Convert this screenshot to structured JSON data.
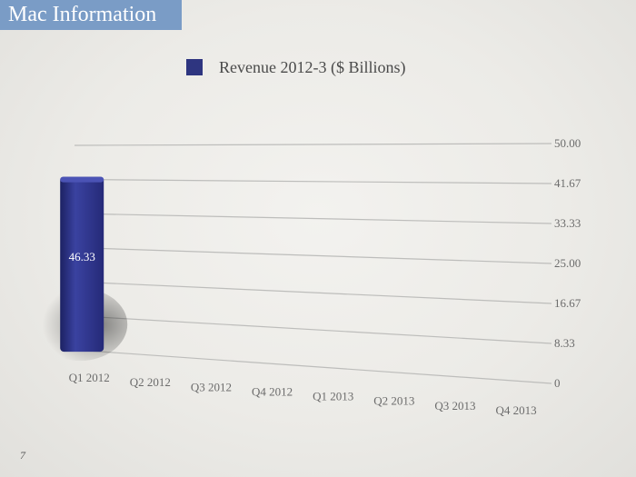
{
  "slide": {
    "title": "Mac Information",
    "title_bg": "#7a9cc6",
    "page_number": "7"
  },
  "chart_data": {
    "type": "bar",
    "categories": [
      "Q1 2012",
      "Q2 2012",
      "Q3 2012",
      "Q4 2012",
      "Q1 2013",
      "Q2 2013",
      "Q3 2013",
      "Q4 2013"
    ],
    "series": [
      {
        "name": "Revenue 2012-3 ($ Billions)",
        "values": [
          46.33,
          null,
          null,
          null,
          null,
          null,
          null,
          null
        ],
        "color": "#2e3580"
      }
    ],
    "data_labels": [
      "46.33",
      "",
      "",
      "",
      "",
      "",
      "",
      ""
    ],
    "y_ticks": [
      "0",
      "8.33",
      "16.67",
      "25.00",
      "33.33",
      "41.67",
      "50.00"
    ],
    "ylim": [
      0,
      50
    ],
    "grid": true,
    "legend_position": "top-center",
    "projection": "3d-perspective"
  }
}
